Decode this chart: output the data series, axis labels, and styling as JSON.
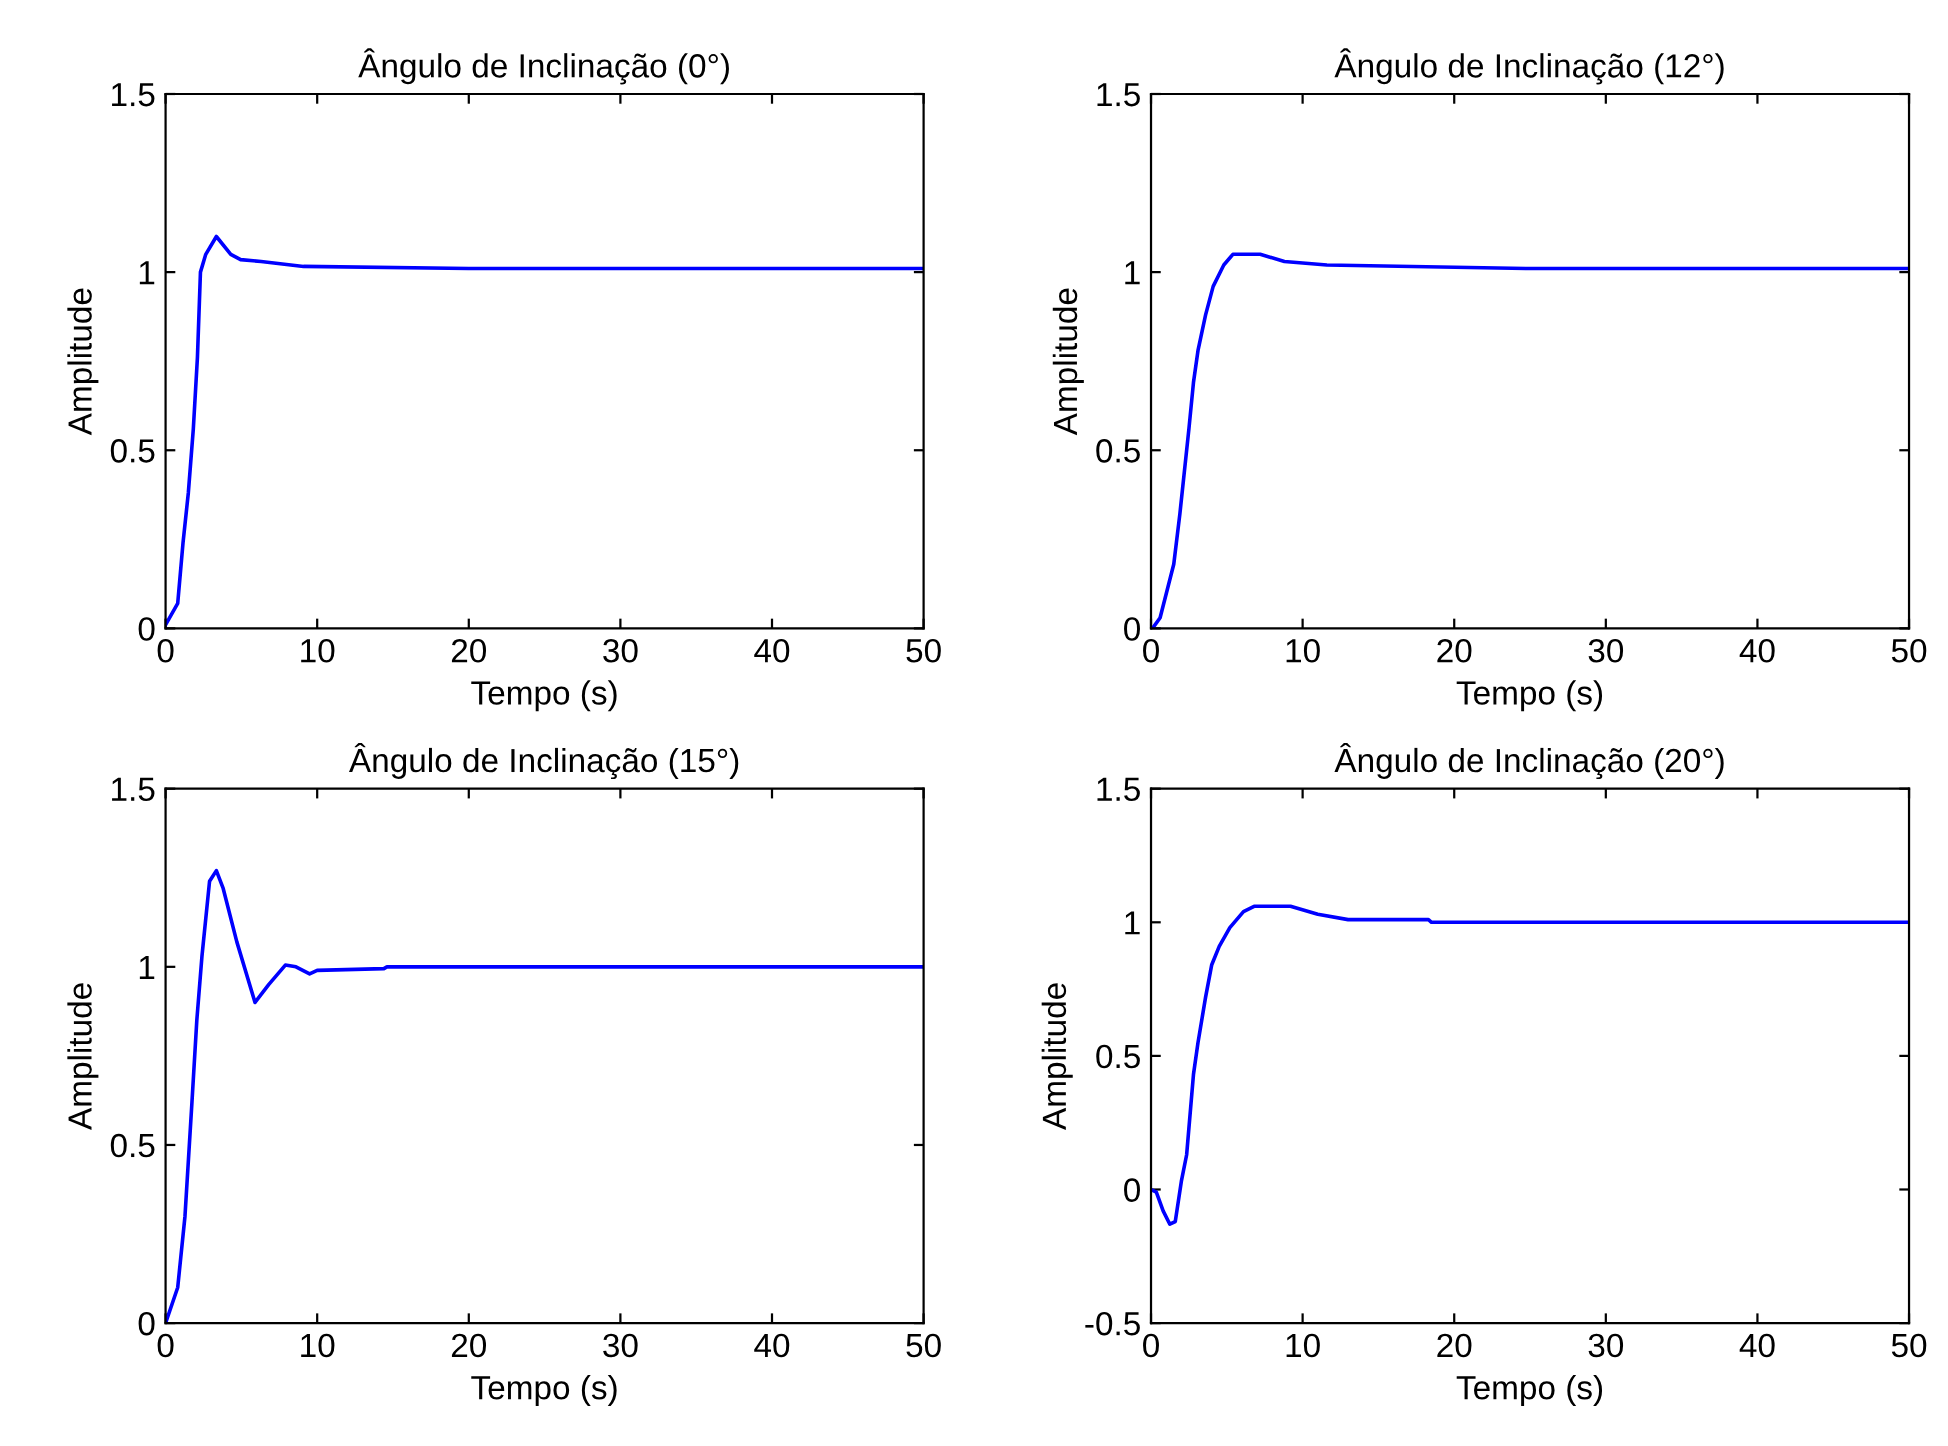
{
  "chart_data": [
    {
      "type": "line",
      "title": "Ângulo de Inclinação (0°)",
      "xlabel": "Tempo (s)",
      "ylabel": "Amplitude",
      "xlim": [
        0,
        50
      ],
      "ylim": [
        0,
        1.5
      ],
      "xticks": [
        0,
        10,
        20,
        30,
        40,
        50
      ],
      "yticks": [
        0,
        0.5,
        1,
        1.5
      ],
      "grid": false,
      "legend": false,
      "series": [
        {
          "color": "#0000ff",
          "x": [
            0,
            0.8,
            1.15,
            1.5,
            1.83,
            2.1,
            2.3,
            2.65,
            3.35,
            4.3,
            4.95,
            6.3,
            9.1,
            20,
            35,
            50
          ],
          "values": [
            0.01,
            0.07,
            0.24,
            0.38,
            0.56,
            0.76,
            1.0,
            1.05,
            1.1,
            1.05,
            1.035,
            1.03,
            1.016,
            1.01,
            1.01,
            1.01
          ]
        }
      ]
    },
    {
      "type": "line",
      "title": "Ângulo de Inclinação (12°)",
      "xlabel": "Tempo (s)",
      "ylabel": "Amplitude",
      "xlim": [
        0,
        50
      ],
      "ylim": [
        0,
        1.5
      ],
      "xticks": [
        0,
        10,
        20,
        30,
        40,
        50
      ],
      "yticks": [
        0,
        0.5,
        1,
        1.5
      ],
      "grid": false,
      "legend": false,
      "series": [
        {
          "color": "#0000ff",
          "x": [
            0.1,
            0.6,
            1.5,
            1.9,
            2.5,
            2.8,
            3.1,
            3.6,
            4.1,
            4.8,
            5.4,
            7.2,
            8.8,
            11.6,
            25,
            50
          ],
          "values": [
            0,
            0.03,
            0.18,
            0.32,
            0.56,
            0.69,
            0.78,
            0.88,
            0.96,
            1.02,
            1.05,
            1.05,
            1.03,
            1.02,
            1.01,
            1.01
          ]
        }
      ]
    },
    {
      "type": "line",
      "title": "Ângulo de Inclinação (15°)",
      "xlabel": "Tempo (s)",
      "ylabel": "Amplitude",
      "xlim": [
        0,
        50
      ],
      "ylim": [
        0,
        1.5
      ],
      "xticks": [
        0,
        10,
        20,
        30,
        40,
        50
      ],
      "yticks": [
        0,
        0.5,
        1,
        1.5
      ],
      "grid": false,
      "legend": false,
      "series": [
        {
          "color": "#0000ff",
          "x": [
            0,
            0.8,
            1.28,
            1.74,
            2.06,
            2.4,
            2.9,
            3.35,
            3.8,
            4.7,
            5.9,
            6.8,
            7.9,
            8.6,
            9.5,
            10,
            14.4,
            14.6,
            30,
            50
          ],
          "values": [
            0,
            0.1,
            0.3,
            0.62,
            0.85,
            1.03,
            1.24,
            1.27,
            1.22,
            1.07,
            0.9,
            0.95,
            1.005,
            1.0,
            0.98,
            0.99,
            0.995,
            1.0,
            1.0,
            1.0
          ]
        }
      ]
    },
    {
      "type": "line",
      "title": "Ângulo de Inclinação (20°)",
      "xlabel": "Tempo (s)",
      "ylabel": "Amplitude",
      "xlim": [
        0,
        50
      ],
      "ylim": [
        -0.5,
        1.5
      ],
      "xticks": [
        0,
        10,
        20,
        30,
        40,
        50
      ],
      "yticks": [
        -0.5,
        0,
        0.5,
        1,
        1.5
      ],
      "grid": false,
      "legend": false,
      "series": [
        {
          "color": "#0000ff",
          "x": [
            0,
            0.35,
            0.8,
            1.24,
            1.6,
            2.0,
            2.35,
            2.8,
            3.1,
            3.6,
            4.0,
            4.5,
            5.2,
            6.1,
            6.8,
            9.2,
            11,
            13,
            18.3,
            18.5,
            35,
            50
          ],
          "values": [
            0,
            -0.01,
            -0.08,
            -0.13,
            -0.12,
            0.03,
            0.13,
            0.43,
            0.55,
            0.72,
            0.84,
            0.91,
            0.98,
            1.04,
            1.06,
            1.06,
            1.03,
            1.01,
            1.01,
            1.0,
            1.0,
            1.0
          ]
        }
      ]
    }
  ]
}
